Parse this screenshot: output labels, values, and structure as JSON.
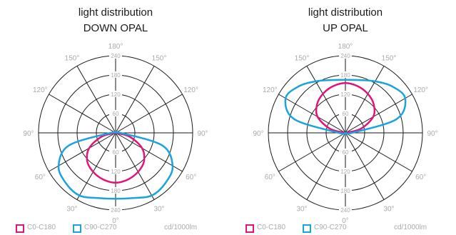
{
  "colors": {
    "c0_c180": "#e0147a",
    "c90_c270": "#1ba3de",
    "grid": "#1a1a1a",
    "label": "#aaaaaa"
  },
  "chart_data": [
    {
      "type": "polar",
      "title_line1": "light distribution",
      "title_line2": "DOWN OPAL",
      "angle_labels": [
        "180°",
        "150°",
        "150°",
        "120°",
        "120°",
        "90°",
        "90°",
        "60°",
        "60°",
        "30°",
        "30°",
        "0°"
      ],
      "radial_ticks": [
        60,
        120,
        180,
        240
      ],
      "rmax": 240,
      "series": [
        {
          "name": "C0-C180",
          "angles_deg": [
            0,
            15,
            30,
            45,
            60,
            75,
            90,
            105,
            120,
            135,
            150,
            165,
            180
          ],
          "values": [
            155,
            150,
            140,
            125,
            95,
            45,
            0,
            0,
            0,
            0,
            0,
            0,
            0
          ]
        },
        {
          "name": "C90-C270",
          "angles_deg": [
            0,
            15,
            30,
            45,
            60,
            75,
            90,
            105,
            120,
            135,
            150,
            165,
            180
          ],
          "values": [
            205,
            210,
            225,
            220,
            205,
            150,
            15,
            0,
            0,
            0,
            0,
            0,
            0
          ]
        }
      ],
      "legend": {
        "c0": "C0-C180",
        "c90": "C90-C270",
        "unit": "cd/1000lm"
      }
    },
    {
      "type": "polar",
      "title_line1": "light distribution",
      "title_line2": "UP OPAL",
      "angle_labels": [
        "180°",
        "150°",
        "150°",
        "120°",
        "120°",
        "90°",
        "90°",
        "60°",
        "60°",
        "30°",
        "30°",
        "0°"
      ],
      "radial_ticks": [
        60,
        120,
        180,
        240
      ],
      "rmax": 240,
      "series": [
        {
          "name": "C0-C180",
          "angles_deg": [
            0,
            15,
            30,
            45,
            60,
            75,
            90,
            105,
            120,
            135,
            150,
            165,
            180
          ],
          "values": [
            0,
            0,
            0,
            0,
            0,
            0,
            0,
            50,
            100,
            125,
            140,
            150,
            155
          ]
        },
        {
          "name": "C90-C270",
          "angles_deg": [
            0,
            15,
            30,
            45,
            60,
            75,
            90,
            105,
            120,
            135,
            150,
            165,
            180
          ],
          "values": [
            0,
            0,
            0,
            0,
            0,
            0,
            20,
            165,
            215,
            205,
            185,
            170,
            165
          ]
        }
      ],
      "legend": {
        "c0": "C0-C180",
        "c90": "C90-C270",
        "unit": "cd/1000lm"
      }
    }
  ]
}
